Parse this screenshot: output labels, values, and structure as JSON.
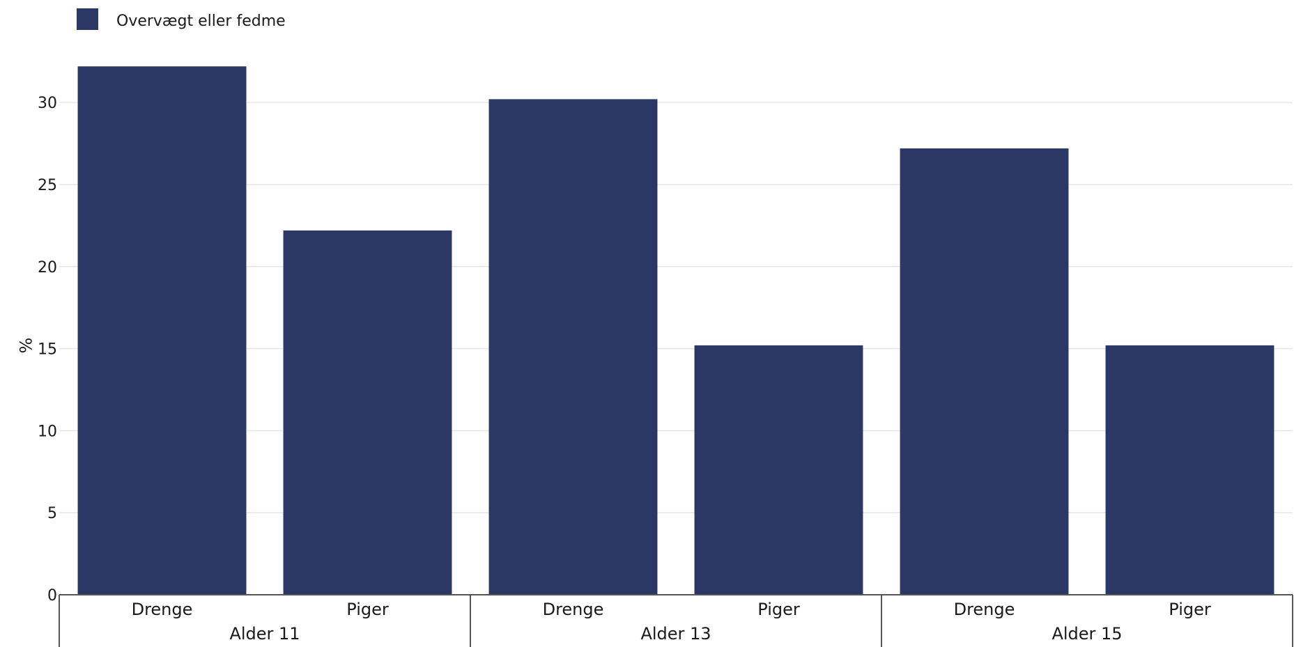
{
  "chart_data": {
    "type": "bar",
    "legend": [
      {
        "name": "Overvægt eller fedme",
        "color": "#2b3764"
      }
    ],
    "legend_position": "top-left",
    "ylabel": "%",
    "ylim": [
      0,
      32
    ],
    "yticks": [
      0,
      5,
      10,
      15,
      20,
      25,
      30
    ],
    "grid": true,
    "groups": [
      {
        "label": "Alder 11",
        "categories": [
          "Drenge",
          "Piger"
        ]
      },
      {
        "label": "Alder 13",
        "categories": [
          "Drenge",
          "Piger"
        ]
      },
      {
        "label": "Alder 15",
        "categories": [
          "Drenge",
          "Piger"
        ]
      }
    ],
    "series": [
      {
        "name": "Overvægt eller fedme",
        "values": [
          32.2,
          22.2,
          30.2,
          15.2,
          27.2,
          15.2
        ]
      }
    ]
  }
}
